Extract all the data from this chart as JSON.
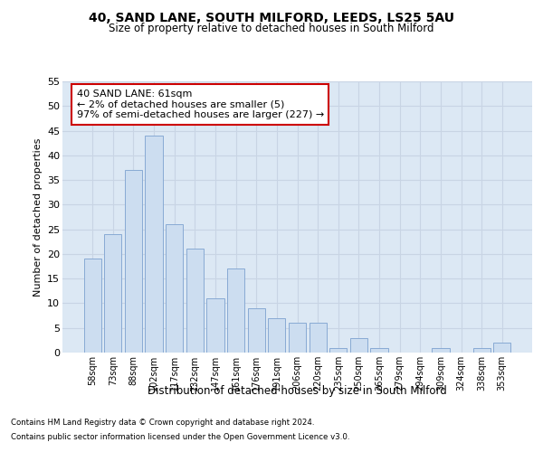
{
  "title1": "40, SAND LANE, SOUTH MILFORD, LEEDS, LS25 5AU",
  "title2": "Size of property relative to detached houses in South Milford",
  "xlabel": "Distribution of detached houses by size in South Milford",
  "ylabel": "Number of detached properties",
  "categories": [
    "58sqm",
    "73sqm",
    "88sqm",
    "102sqm",
    "117sqm",
    "132sqm",
    "147sqm",
    "161sqm",
    "176sqm",
    "191sqm",
    "206sqm",
    "220sqm",
    "235sqm",
    "250sqm",
    "265sqm",
    "279sqm",
    "294sqm",
    "309sqm",
    "324sqm",
    "338sqm",
    "353sqm"
  ],
  "values": [
    19,
    24,
    37,
    44,
    26,
    21,
    11,
    17,
    9,
    7,
    6,
    6,
    1,
    3,
    1,
    0,
    0,
    1,
    0,
    1,
    2
  ],
  "bar_color": "#ccddf0",
  "bar_edge_color": "#88aad4",
  "annotation_line1": "40 SAND LANE: 61sqm",
  "annotation_line2": "← 2% of detached houses are smaller (5)",
  "annotation_line3": "97% of semi-detached houses are larger (227) →",
  "annotation_box_edge_color": "#cc0000",
  "footnote1": "Contains HM Land Registry data © Crown copyright and database right 2024.",
  "footnote2": "Contains public sector information licensed under the Open Government Licence v3.0.",
  "ylim_max": 55,
  "yticks": [
    0,
    5,
    10,
    15,
    20,
    25,
    30,
    35,
    40,
    45,
    50,
    55
  ],
  "grid_color": "#c8d4e4",
  "bg_color": "#dce8f4"
}
